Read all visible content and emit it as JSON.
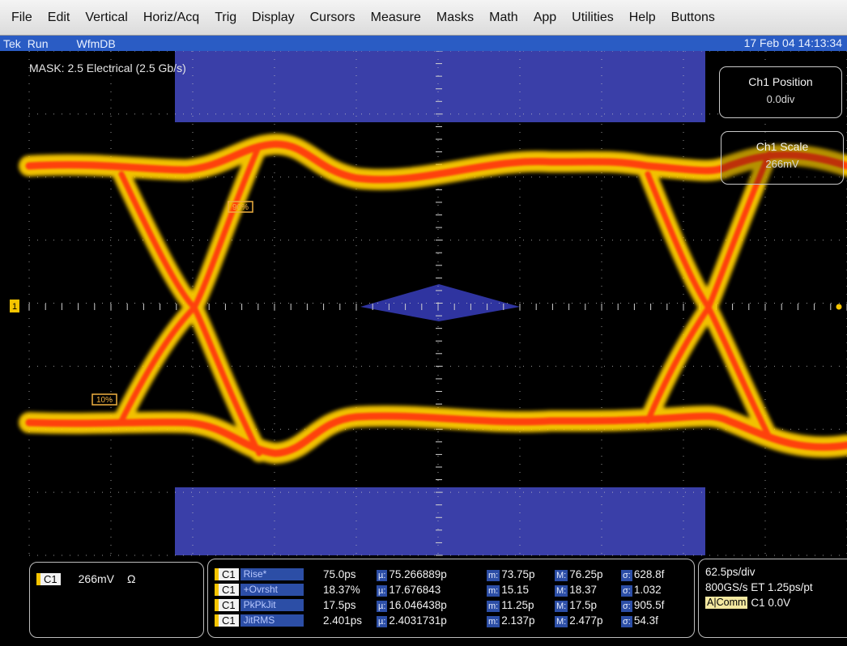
{
  "menu": [
    "File",
    "Edit",
    "Vertical",
    "Horiz/Acq",
    "Trig",
    "Display",
    "Cursors",
    "Measure",
    "Masks",
    "Math",
    "App",
    "Utilities",
    "Help",
    "Buttons"
  ],
  "status": {
    "tek": "Tek",
    "state": "Run",
    "db": "WfmDB",
    "datetime": "17 Feb 04 14:13:34"
  },
  "mask_label": "MASK: 2.5 Electrical (2.5 Gb/s)",
  "position_box": {
    "title": "Ch1 Position",
    "value": "0.0div"
  },
  "scale_box": {
    "title": "Ch1 Scale",
    "value": "266mV"
  },
  "markers": {
    "top_pct": "90%",
    "bottom_pct": "10%"
  },
  "channel": {
    "tag": "C1",
    "scale": "266mV",
    "coupling": "Ω"
  },
  "measurements": [
    {
      "tag": "C1",
      "name": "Rise*",
      "value": "75.0ps",
      "mu": "75.266889p",
      "min": "73.75p",
      "max": "76.25p",
      "sigma": "628.8f"
    },
    {
      "tag": "C1",
      "name": "+Ovrsht",
      "value": "18.37%",
      "mu": "17.676843",
      "min": "15.15",
      "max": "18.37",
      "sigma": "1.032"
    },
    {
      "tag": "C1",
      "name": "PkPkJit",
      "value": "17.5ps",
      "mu": "16.046438p",
      "min": "11.25p",
      "max": "17.5p",
      "sigma": "905.5f"
    },
    {
      "tag": "C1",
      "name": "JitRMS",
      "value": "2.401ps",
      "mu": "2.4031731p",
      "min": "2.137p",
      "max": "2.477p",
      "sigma": "54.3f"
    }
  ],
  "stat_tags": {
    "mu": "µ:",
    "min": "m:",
    "max": "M:",
    "sigma": "σ:"
  },
  "timebase": {
    "per_div": "62.5ps/div",
    "sample": "800GS/s ET 1.25ps/pt",
    "trig_mode": "A|Comm",
    "trig_src": "C1 0.0V"
  },
  "colors": {
    "mask": "#3a3fa8",
    "trace_core": "#ff3a10",
    "trace_edge": "#ffd400",
    "status_bar": "#2a5cc4",
    "c1": "#f5c400"
  }
}
